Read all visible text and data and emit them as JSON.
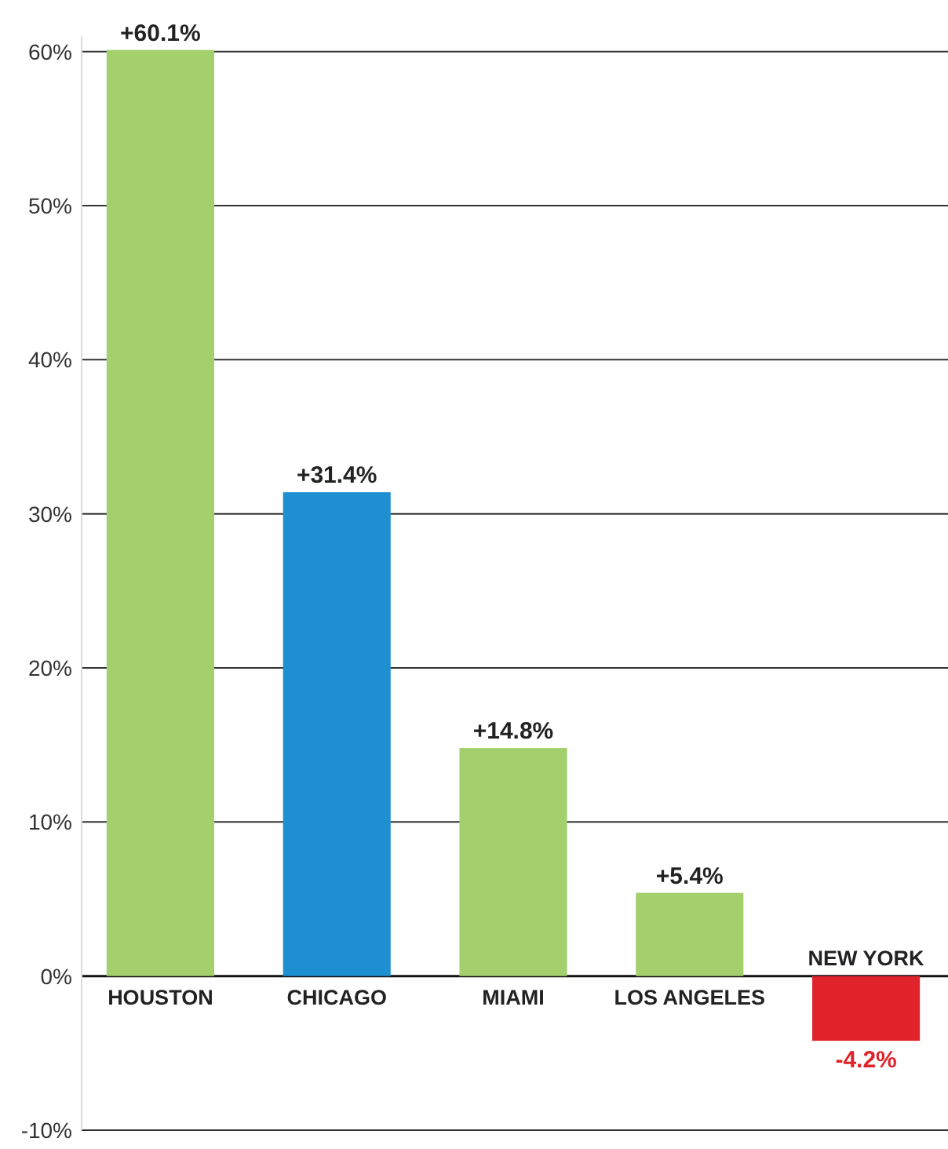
{
  "chart_data": {
    "type": "bar",
    "categories": [
      "HOUSTON",
      "CHICAGO",
      "MIAMI",
      "LOS ANGELES",
      "NEW YORK"
    ],
    "values": [
      60.1,
      31.4,
      14.8,
      5.4,
      -4.2
    ],
    "colors": [
      "#a3d06c",
      "#1e8fd0",
      "#a3d06c",
      "#a3d06c",
      "#e0232b"
    ],
    "value_labels": [
      "+60.1%",
      "+31.4%",
      "+14.8%",
      "+5.4%",
      "-4.2%"
    ],
    "ylim": [
      -10,
      61
    ],
    "yticks": [
      {
        "value": -10,
        "label": "-10%"
      },
      {
        "value": 0,
        "label": "0%"
      },
      {
        "value": 10,
        "label": "10%"
      },
      {
        "value": 20,
        "label": "20%"
      },
      {
        "value": 30,
        "label": "30%"
      },
      {
        "value": 40,
        "label": "40%"
      },
      {
        "value": 50,
        "label": "50%"
      },
      {
        "value": 60,
        "label": "60%"
      }
    ],
    "grid": "y"
  }
}
